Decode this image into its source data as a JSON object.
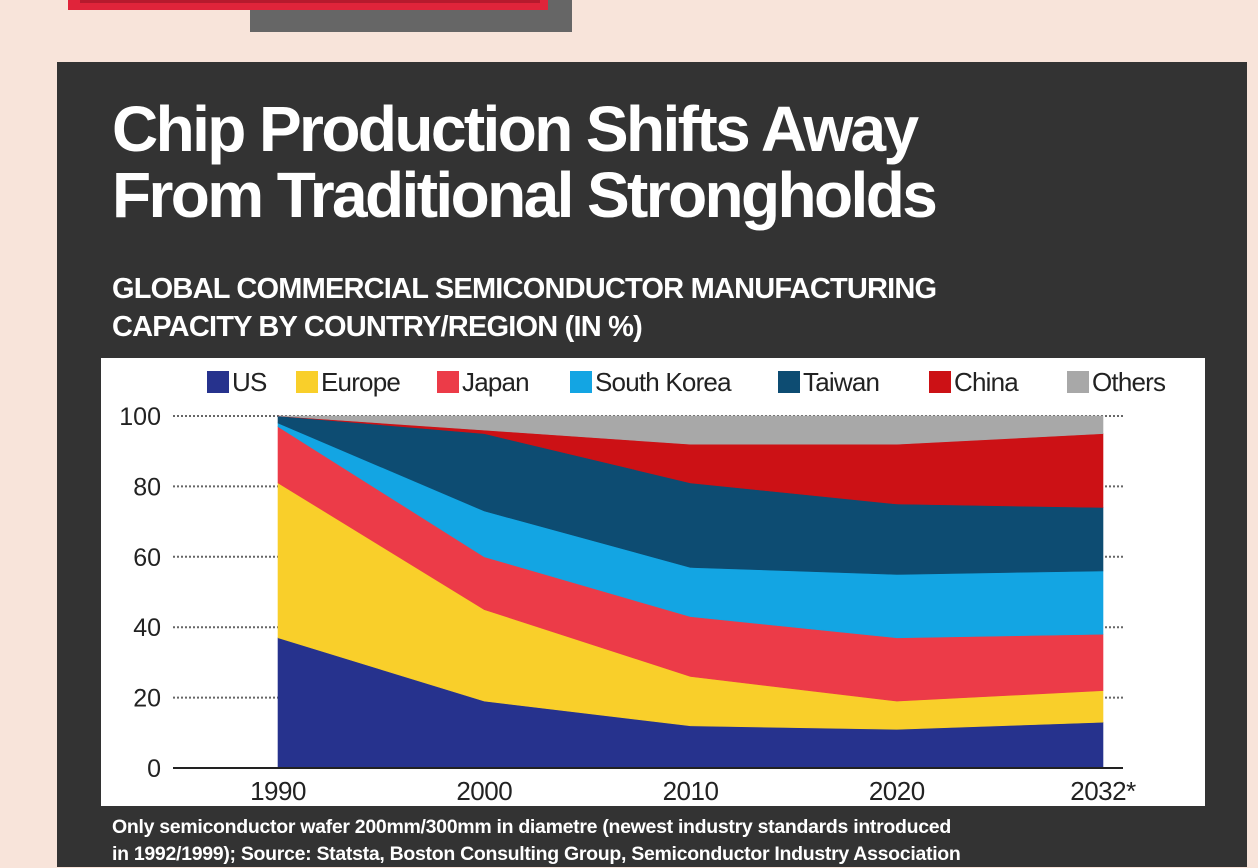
{
  "headline": "Chip Production Shifts Away\nFrom Traditional Strongholds",
  "subheadline": "GLOBAL COMMERCIAL SEMICONDUCTOR MANUFACTURING\nCAPACITY BY COUNTRY/REGION (IN %)",
  "footnote": "Only semiconductor wafer 200mm/300mm in diametre (newest industry standards introduced\nin 1992/1999); Source: Statsta, Boston Consulting Group, Semiconductor Industry Association",
  "colors": {
    "page_bg": "#f8e4da",
    "card_bg": "#333333",
    "US": "#26328d",
    "Europe": "#f9cf2a",
    "Japan": "#ec3b48",
    "South Korea": "#13a5e3",
    "Taiwan": "#0d4c72",
    "China": "#cc1115",
    "Others": "#a8a8a8"
  },
  "chart_data": {
    "type": "area",
    "stacked": true,
    "title": "GLOBAL COMMERCIAL SEMICONDUCTOR MANUFACTURING CAPACITY BY COUNTRY/REGION (IN %)",
    "xlabel": "",
    "ylabel": "",
    "x": [
      "1990",
      "2000",
      "2010",
      "2020",
      "2032*"
    ],
    "ylim": [
      0,
      100
    ],
    "yticks": [
      0,
      20,
      40,
      60,
      80,
      100
    ],
    "grid": "horizontal dotted",
    "legend_position": "top",
    "series": [
      {
        "name": "US",
        "color": "#26328d",
        "values": [
          37,
          19,
          12,
          11,
          13
        ]
      },
      {
        "name": "Europe",
        "color": "#f9cf2a",
        "values": [
          44,
          26,
          14,
          8,
          9
        ]
      },
      {
        "name": "Japan",
        "color": "#ec3b48",
        "values": [
          16,
          15,
          17,
          18,
          16
        ]
      },
      {
        "name": "South Korea",
        "color": "#13a5e3",
        "values": [
          1,
          13,
          14,
          18,
          18
        ]
      },
      {
        "name": "Taiwan",
        "color": "#0d4c72",
        "values": [
          2,
          22,
          24,
          20,
          18
        ]
      },
      {
        "name": "China",
        "color": "#cc1115",
        "values": [
          0,
          1,
          11,
          17,
          21
        ]
      },
      {
        "name": "Others",
        "color": "#a8a8a8",
        "values": [
          0,
          4,
          8,
          8,
          5
        ]
      }
    ]
  }
}
